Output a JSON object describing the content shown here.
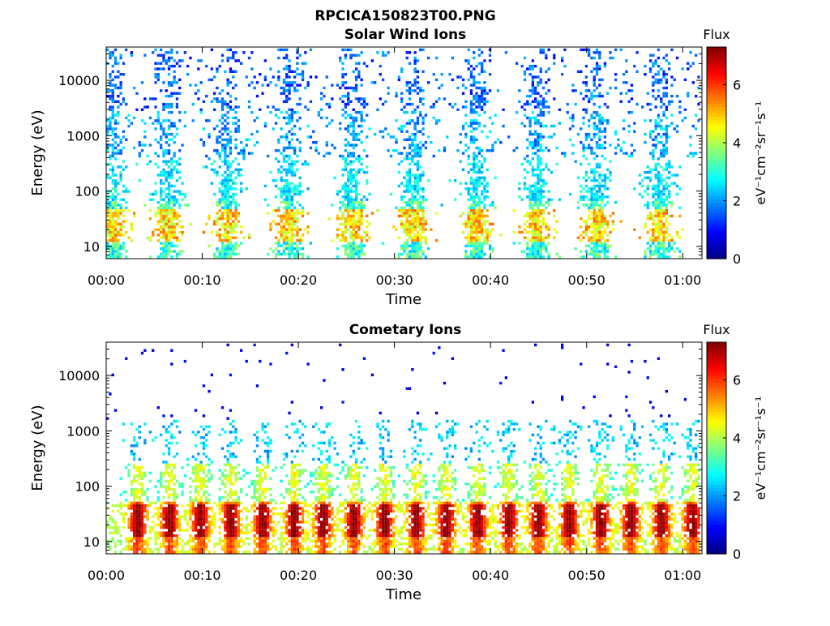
{
  "figure_title": "RPCICA150823T00.PNG",
  "chart_data": [
    {
      "type": "heatmap",
      "title": "Solar Wind Ions",
      "xlabel": "Time",
      "ylabel": "Energy (eV)",
      "y_scale": "log",
      "ylim": [
        6,
        40000
      ],
      "x_range": [
        "00:00",
        "01:02"
      ],
      "x_ticks": [
        "00:00",
        "00:10",
        "00:20",
        "00:30",
        "00:40",
        "00:50",
        "01:00"
      ],
      "y_ticks": [
        "10",
        "100",
        "1000",
        "10000"
      ],
      "colorbar": {
        "label": "Flux",
        "unit": "eV⁻¹cm⁻²sr⁻¹s⁻¹",
        "range": [
          0,
          7.3
        ],
        "ticks": [
          "0",
          "2",
          "4",
          "6"
        ],
        "colormap": "jet"
      },
      "sweep_centers_min": [
        0.6,
        6.4,
        12.6,
        19.0,
        25.6,
        32.0,
        38.5,
        44.8,
        51.0,
        57.6
      ],
      "cluster_energy_ev": 20,
      "cluster_flux": 5.2,
      "pattern": "broadband sweeps, sparse above ~100 eV (flux 1–3)"
    },
    {
      "type": "heatmap",
      "title": "Cometary Ions",
      "xlabel": "Time",
      "ylabel": "Energy (eV)",
      "y_scale": "log",
      "ylim": [
        6,
        40000
      ],
      "x_range": [
        "00:00",
        "01:02"
      ],
      "x_ticks": [
        "00:00",
        "00:10",
        "00:20",
        "00:30",
        "00:40",
        "00:50",
        "01:00"
      ],
      "y_ticks": [
        "10",
        "100",
        "1000",
        "10000"
      ],
      "colorbar": {
        "label": "Flux",
        "unit": "eV⁻¹cm⁻²sr⁻¹s⁻¹",
        "range": [
          0,
          7.3
        ],
        "ticks": [
          "0",
          "2",
          "4",
          "6"
        ],
        "colormap": "jet"
      },
      "peak_centers_min": [
        3.3,
        6.6,
        9.8,
        13.0,
        16.3,
        19.6,
        22.6,
        25.8,
        29.0,
        32.3,
        35.4,
        38.7,
        41.9,
        45.0,
        48.2,
        51.5,
        54.6,
        57.8,
        61.0
      ],
      "peak_energy_range_ev": [
        12,
        45
      ],
      "peak_flux": 7.0,
      "pattern": "intense low-energy bands, scattered points up to ~10000 eV"
    }
  ]
}
